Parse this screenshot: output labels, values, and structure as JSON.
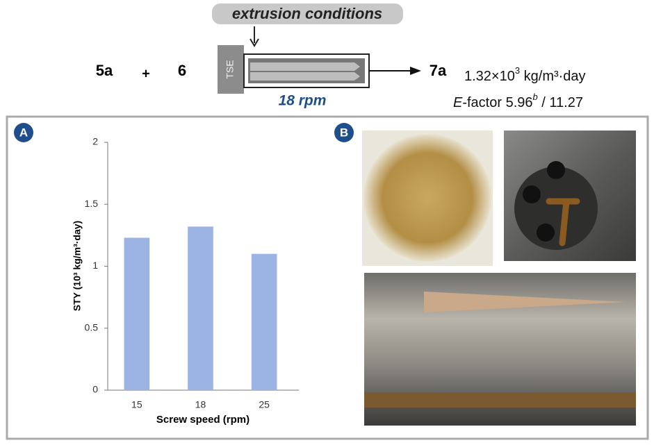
{
  "scheme": {
    "conditions_label": "extrusion conditions",
    "reactant_1": "5a",
    "plus": "+",
    "reactant_2": "6",
    "extruder": "TSE",
    "speed": "18 rpm",
    "product": "7a",
    "sty_parts": [
      "1.32×10",
      "3",
      " kg/m³·day"
    ],
    "efactor_parts": [
      "E",
      "-factor 5.96",
      "b",
      " / 11.27"
    ]
  },
  "panels": {
    "a": "A",
    "b": "B"
  },
  "chart_data": {
    "type": "bar",
    "categories": [
      "15",
      "18",
      "25"
    ],
    "values": [
      1.23,
      1.32,
      1.1
    ],
    "color": "#9bb4e4",
    "x_label": "Screw speed (rpm)",
    "y_label": "STY (10³ kg/m³·day)",
    "ylim": [
      0,
      2
    ],
    "yticks": [
      0,
      0.5,
      1,
      1.5,
      2
    ],
    "grid": false
  }
}
